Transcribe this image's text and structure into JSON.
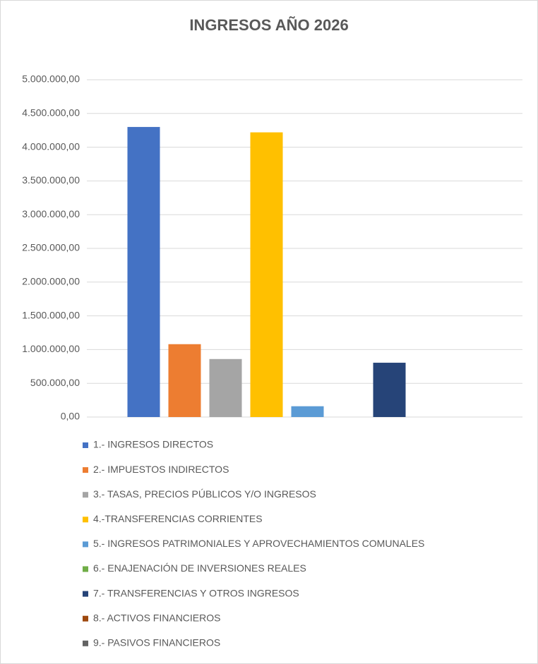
{
  "chart_data": {
    "type": "bar",
    "title": "INGRESOS AÑO 2026",
    "categories": [
      null
    ],
    "series": [
      {
        "name": "1.- INGRESOS DIRECTOS",
        "color": "#4472c4",
        "values": [
          4300000
        ]
      },
      {
        "name": "2.- IMPUESTOS INDIRECTOS",
        "color": "#ed7d31",
        "values": [
          1080000
        ]
      },
      {
        "name": "3.- TASAS, PRECIOS PÚBLICOS Y/O INGRESOS",
        "color": "#a5a5a5",
        "values": [
          860000
        ]
      },
      {
        "name": "4.-TRANSFERENCIAS CORRIENTES",
        "color": "#ffc000",
        "values": [
          4220000
        ]
      },
      {
        "name": "5.- INGRESOS PATRIMONIALES Y APROVECHAMIENTOS COMUNALES",
        "color": "#5b9bd5",
        "values": [
          160000
        ]
      },
      {
        "name": "6.- ENAJENACIÓN DE INVERSIONES REALES",
        "color": "#70ad47",
        "values": [
          0
        ]
      },
      {
        "name": "7.- TRANSFERENCIAS Y OTROS INGRESOS",
        "color": "#264478",
        "values": [
          805000
        ]
      },
      {
        "name": "8.- ACTIVOS FINANCIEROS",
        "color": "#9e480e",
        "values": [
          0
        ]
      },
      {
        "name": "9.- PASIVOS FINANCIEROS",
        "color": "#636363",
        "values": [
          0
        ]
      }
    ],
    "ylim": [
      0,
      5000000
    ],
    "yticks": [
      {
        "value": 0,
        "label": "0,00"
      },
      {
        "value": 500000,
        "label": "500.000,00"
      },
      {
        "value": 1000000,
        "label": "1.000.000,00"
      },
      {
        "value": 1500000,
        "label": "1.500.000,00"
      },
      {
        "value": 2000000,
        "label": "2.000.000,00"
      },
      {
        "value": 2500000,
        "label": "2.500.000,00"
      },
      {
        "value": 3000000,
        "label": "3.000.000,00"
      },
      {
        "value": 3500000,
        "label": "3.500.000,00"
      },
      {
        "value": 4000000,
        "label": "4.000.000,00"
      },
      {
        "value": 4500000,
        "label": "4.500.000,00"
      },
      {
        "value": 5000000,
        "label": "5.000.000,00"
      }
    ],
    "grid": true,
    "legend": "bottom"
  }
}
